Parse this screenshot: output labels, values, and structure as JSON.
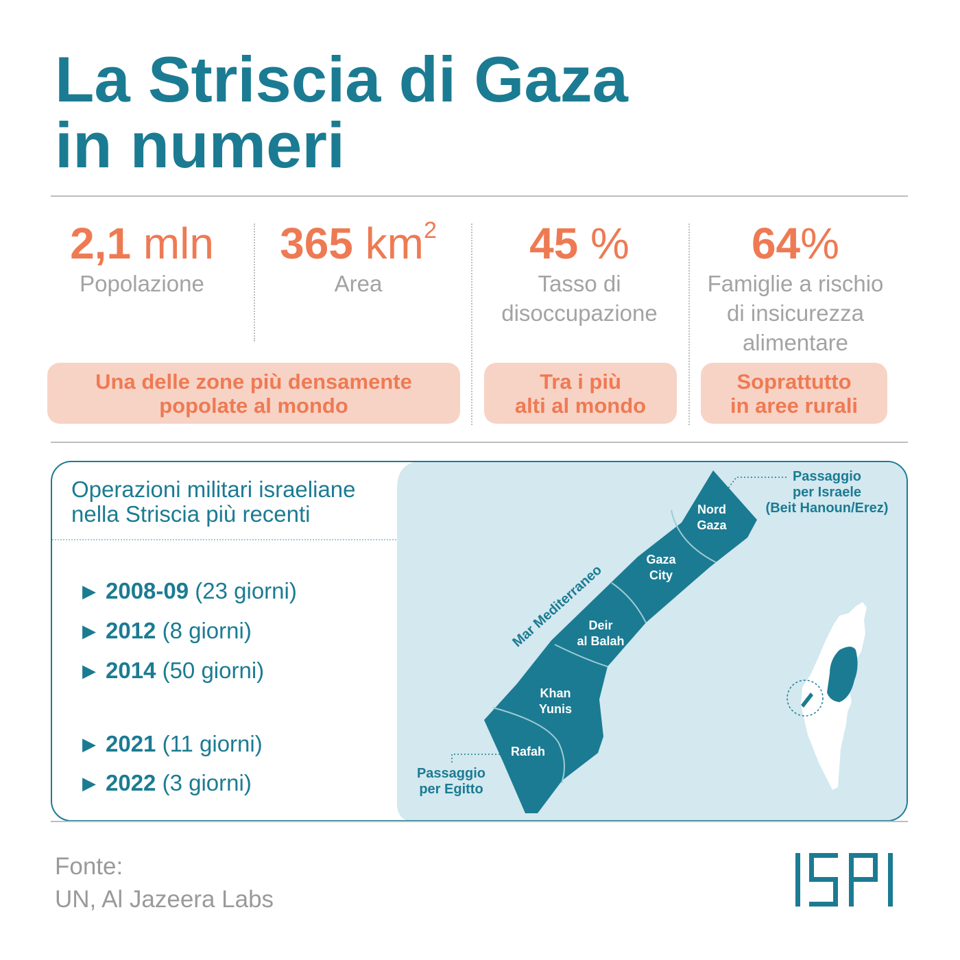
{
  "title": {
    "line1": "La Striscia di Gaza",
    "line2": "in numeri"
  },
  "stats": [
    {
      "value": "2,1",
      "unit": " mln",
      "label": "Popolazione"
    },
    {
      "value": "365",
      "unit": " km",
      "unit_sup": "2",
      "label": "Area"
    },
    {
      "value": "45",
      "unit": " %",
      "label_lines": [
        "Tasso di",
        "disoccupazione"
      ]
    },
    {
      "value": "64",
      "unit": "%",
      "label_lines": [
        "Famiglie a rischio",
        "di insicurezza",
        "alimentare"
      ]
    }
  ],
  "notes": [
    {
      "lines": [
        "Una delle zone più densamente",
        "popolate al mondo"
      ]
    },
    {
      "lines": [
        "Tra i più",
        "alti al mondo"
      ]
    },
    {
      "lines": [
        "Soprattutto",
        "in aree rurali"
      ]
    }
  ],
  "operations": {
    "title_lines": [
      "Operazioni militari israeliane",
      "nella Striscia più recenti"
    ],
    "marker": "▶",
    "items": [
      {
        "year": "2008-09",
        "duration": " (23 giorni)"
      },
      {
        "year": "2012",
        "duration": " (8 giorni)"
      },
      {
        "year": "2014",
        "duration": " (50 giorni)"
      },
      {
        "year": "2021",
        "duration": " (11 giorni)"
      },
      {
        "year": "2022",
        "duration": " (3 giorni)"
      }
    ]
  },
  "map": {
    "sea_label": "Mar Mediterraneo",
    "regions": [
      {
        "lines": [
          "Nord",
          "Gaza"
        ]
      },
      {
        "lines": [
          "Gaza",
          "City"
        ]
      },
      {
        "lines": [
          "Deir",
          "al Balah"
        ]
      },
      {
        "lines": [
          "Khan",
          "Yunis"
        ]
      },
      {
        "lines": [
          "Rafah"
        ]
      }
    ],
    "crossing_israel": [
      "Passaggio",
      "per Israele",
      "(Beit Hanoun/Erez)"
    ],
    "crossing_egypt": [
      "Passaggio",
      "per Egitto"
    ]
  },
  "source": {
    "label": "Fonte:",
    "text": "UN, Al Jazeera Labs"
  },
  "logo": "ISPI",
  "colors": {
    "teal": "#1b7b92",
    "orange": "#ee7a53",
    "pill_bg": "#f7d3c6",
    "map_bg": "#d3e8ef",
    "gray_text": "#a3a3a3"
  }
}
